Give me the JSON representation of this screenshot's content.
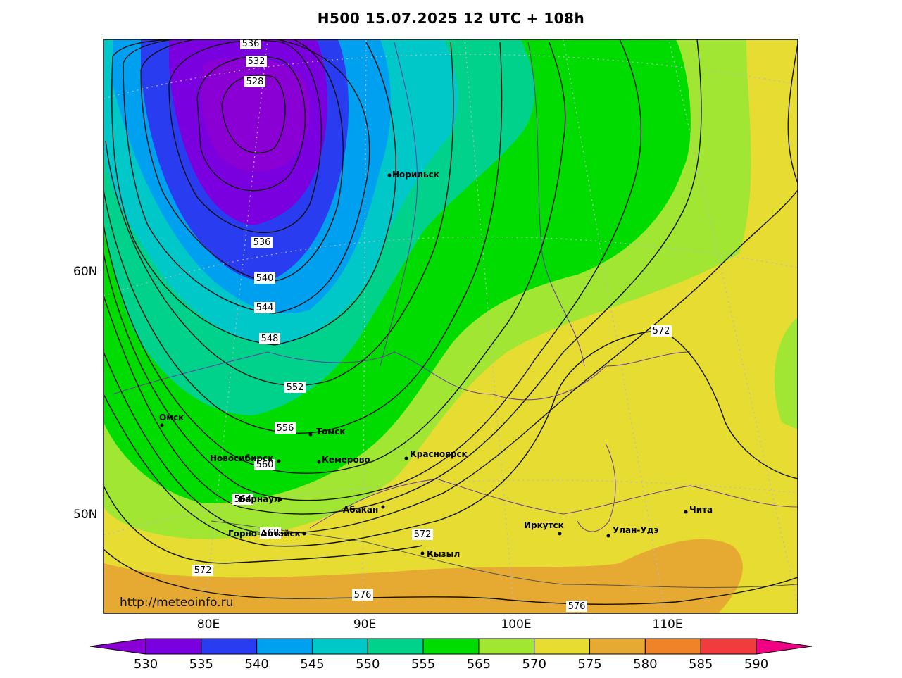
{
  "title": "H500  15.07.2025 12 UTC + 108h",
  "watermark": "http://meteoinfo.ru",
  "lat_labels": [
    "60N",
    "50N"
  ],
  "lon_labels": [
    "80E",
    "90E",
    "100E",
    "110E"
  ],
  "isoline_labels": [
    "536",
    "532",
    "528",
    "536",
    "540",
    "544",
    "548",
    "552",
    "556",
    "560",
    "564",
    "568",
    "572",
    "572",
    "572",
    "576",
    "576"
  ],
  "cities": [
    "Норильск",
    "Омск",
    "Томск",
    "Новосибирск",
    "Кемерово",
    "Красноярск",
    "Барнаул",
    "Абакан",
    "Горно-Алтайск",
    "Кызыл",
    "Иркутск",
    "Улан-Удэ",
    "Чита"
  ],
  "colorbar": {
    "ticks": [
      "530",
      "535",
      "540",
      "545",
      "550",
      "555",
      "565",
      "570",
      "575",
      "580",
      "585",
      "590"
    ],
    "colors": [
      "#8a00d4",
      "#7a00e0",
      "#2a3cf0",
      "#00a0f0",
      "#00c8c8",
      "#00d28c",
      "#00dc00",
      "#a0e632",
      "#e6dc32",
      "#e6aa32",
      "#f08228",
      "#f03c3c",
      "#f00082"
    ]
  }
}
